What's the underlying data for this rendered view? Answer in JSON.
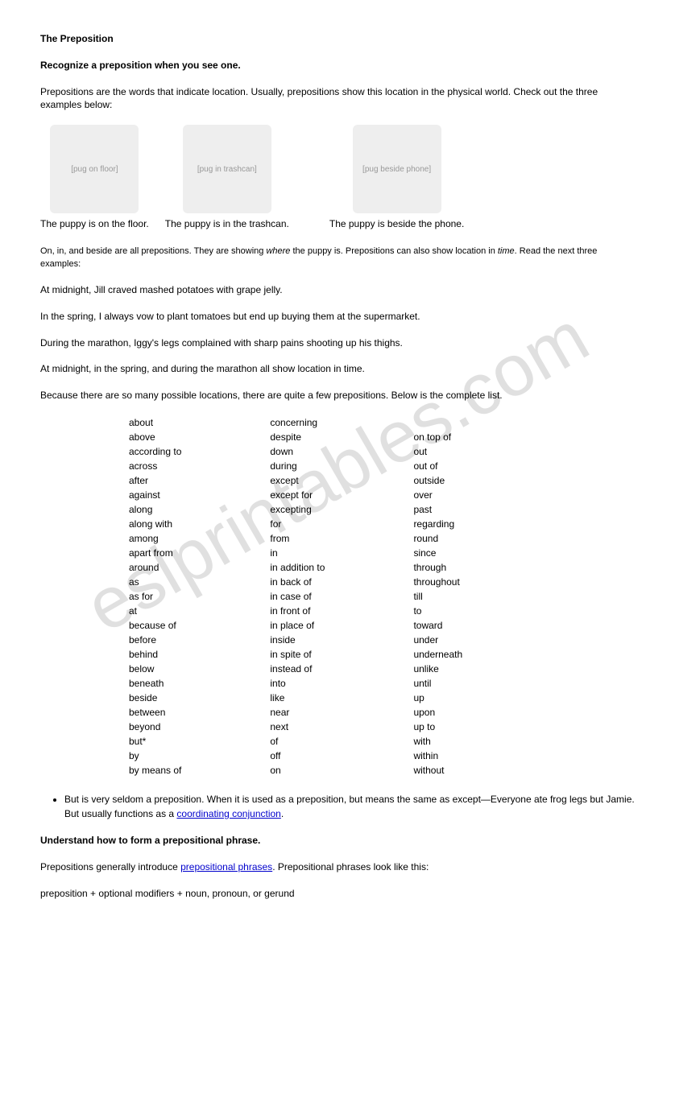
{
  "title": "The Preposition",
  "heading1": "Recognize a preposition when you see one.",
  "intro": "Prepositions are the words that indicate location. Usually, prepositions show this location in the physical world. Check out the three examples below:",
  "images": [
    {
      "placeholder": "[pug on floor]",
      "caption": "The puppy is on the floor."
    },
    {
      "placeholder": "[pug in trashcan]",
      "caption": "The puppy is in the trashcan."
    },
    {
      "placeholder": "[pug beside phone]",
      "caption": "The puppy is beside the phone."
    }
  ],
  "para2_pre": "On, in, and beside are all prepositions. They are showing ",
  "para2_where": "where",
  "para2_mid": " the puppy is. Prepositions can also show location in ",
  "para2_time": "time",
  "para2_post": ". Read the next three examples:",
  "ex1": "At midnight, Jill craved mashed potatoes with grape jelly.",
  "ex2": "In the spring, I always vow to plant tomatoes but end up buying them at the supermarket.",
  "ex3": "During the marathon, Iggy's legs complained with sharp pains shooting up his thighs.",
  "ex4": "At midnight, in the spring, and during the marathon all show location in time.",
  "para3": "Because there are so many possible locations, there are quite a few prepositions. Below is the complete list.",
  "prepositions": {
    "col1": [
      "about",
      "above",
      "according to",
      "across",
      "after",
      "against",
      "along",
      "along with",
      "among",
      "apart from",
      "around",
      "as",
      "as for",
      "at",
      "because of",
      "before",
      "behind",
      "below",
      "beneath",
      "beside",
      "between",
      "beyond",
      "but*",
      "by",
      "by means of"
    ],
    "col2": [
      "concerning",
      "despite",
      "down",
      "during",
      "except",
      "except for",
      "excepting",
      "for",
      "from",
      "in",
      "in addition to",
      "in back of",
      "in case of",
      "in front of",
      "in place of",
      "inside",
      "in spite of",
      "instead of",
      "into",
      "like",
      "near",
      "next",
      "of",
      "off",
      "on"
    ],
    "col3": [
      "",
      "on top of",
      "out",
      "out of",
      "outside",
      "over",
      "past",
      "regarding",
      "round",
      "since",
      "through",
      "throughout",
      "till",
      "to",
      "toward",
      "under",
      "underneath",
      "unlike",
      "until",
      "up",
      "upon",
      "up to",
      "with",
      "within",
      "without"
    ]
  },
  "bullet1_pre": "But is very seldom a preposition. When it is used as a preposition, but means the same as except—Everyone ate frog legs but Jamie. But usually functions as a ",
  "bullet1_link": "coordinating conjunction",
  "bullet1_post": ".",
  "heading2": "Understand how to form a prepositional phrase.",
  "para4_pre": "Prepositions generally introduce ",
  "para4_link": "prepositional phrases",
  "para4_post": ". Prepositional phrases look like this:",
  "formula": "preposition + optional modifiers + noun, pronoun, or gerund",
  "watermark": "eslprintables.com"
}
